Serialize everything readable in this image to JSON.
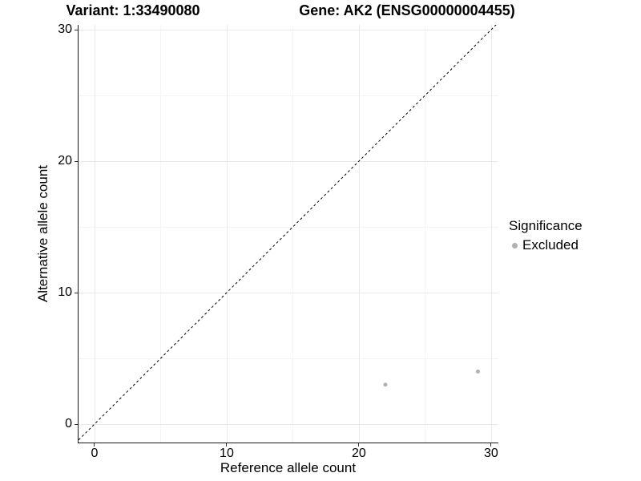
{
  "chart_data": {
    "type": "scatter",
    "title_left": "Variant: 1:33490080",
    "title_right": "Gene: AK2 (ENSG00000004455)",
    "xlabel": "Reference allele count",
    "ylabel": "Alternative allele count",
    "xlim": [
      -1.27,
      30.55
    ],
    "ylim": [
      -1.46,
      30.37
    ],
    "x_ticks": [
      0,
      10,
      20,
      30
    ],
    "y_ticks": [
      0,
      10,
      20,
      30
    ],
    "x_minor_ticks": [
      5,
      15,
      25
    ],
    "y_minor_ticks": [
      5,
      15,
      25
    ],
    "grid": true,
    "series": [
      {
        "name": "Excluded",
        "color": "#b0b0b0",
        "points": [
          {
            "x": 22,
            "y": 3
          },
          {
            "x": 29,
            "y": 4
          }
        ]
      }
    ],
    "diagonal": {
      "slope": 1,
      "intercept": 0,
      "style": "dashed",
      "color": "#000000"
    },
    "legend": {
      "title": "Significance",
      "position": "right",
      "entries": [
        {
          "label": "Excluded",
          "color": "#b0b0b0"
        }
      ]
    },
    "colors": {
      "axis_line": "#1a1a1a",
      "grid_major": "#e9e9e9",
      "grid_minor": "#f4f4f4",
      "point": "#b0b0b0"
    }
  }
}
